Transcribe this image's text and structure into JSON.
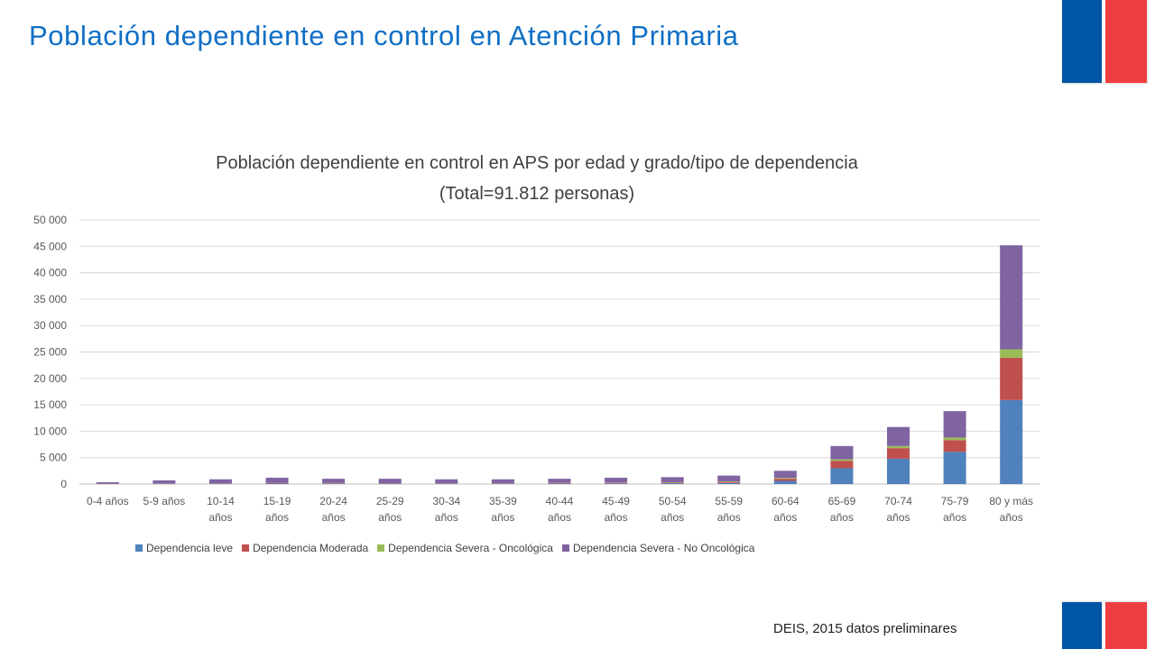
{
  "slide": {
    "title": "Población dependiente en control en Atención Primaria"
  },
  "flag_colors": {
    "blue": "#0055a4",
    "red": "#ef3e42"
  },
  "source": "DEIS, 2015 datos preliminares",
  "chart_data": {
    "type": "bar",
    "stacked": true,
    "title_line1": "Población dependiente en control en APS por edad y grado/tipo de dependencia",
    "title_line2": "(Total=91.812 personas)",
    "categories": [
      [
        "0-4 años"
      ],
      [
        "5-9 años"
      ],
      [
        "10-14",
        "años"
      ],
      [
        "15-19",
        "años"
      ],
      [
        "20-24",
        "años"
      ],
      [
        "25-29",
        "años"
      ],
      [
        "30-34",
        "años"
      ],
      [
        "35-39",
        "años"
      ],
      [
        "40-44",
        "años"
      ],
      [
        "45-49",
        "años"
      ],
      [
        "50-54",
        "años"
      ],
      [
        "55-59",
        "años"
      ],
      [
        "60-64",
        "años"
      ],
      [
        "65-69",
        "años"
      ],
      [
        "70-74",
        "años"
      ],
      [
        "75-79",
        "años"
      ],
      [
        "80 y más",
        "años"
      ]
    ],
    "ylim": [
      0,
      50000
    ],
    "yticks": [
      0,
      5000,
      10000,
      15000,
      20000,
      25000,
      30000,
      35000,
      40000,
      45000,
      50000
    ],
    "ytick_labels": [
      "0",
      "5 000",
      "10 000",
      "15 000",
      "20 000",
      "25 000",
      "30 000",
      "35 000",
      "40 000",
      "45 000",
      "50 000"
    ],
    "grid": true,
    "legend_position": "bottom",
    "series": [
      {
        "name": "Dependencia leve",
        "color": "#4f81bd",
        "values": [
          40,
          60,
          70,
          90,
          80,
          80,
          70,
          80,
          90,
          110,
          150,
          200,
          600,
          3000,
          4800,
          6100,
          15900
        ]
      },
      {
        "name": "Dependencia Moderada",
        "color": "#c0504d",
        "values": [
          30,
          50,
          60,
          80,
          70,
          70,
          60,
          70,
          90,
          110,
          130,
          200,
          400,
          1400,
          2000,
          2200,
          8000
        ]
      },
      {
        "name": "Dependencia Severa - Oncológica",
        "color": "#9bbb59",
        "values": [
          10,
          10,
          10,
          20,
          50,
          20,
          30,
          30,
          40,
          50,
          80,
          100,
          150,
          300,
          400,
          500,
          1600
        ]
      },
      {
        "name": "Dependencia Severa - No Oncológica",
        "color": "#8064a2",
        "values": [
          270,
          580,
          760,
          1010,
          800,
          830,
          740,
          720,
          780,
          930,
          940,
          1100,
          1350,
          2500,
          3600,
          5000,
          19700
        ]
      }
    ]
  }
}
